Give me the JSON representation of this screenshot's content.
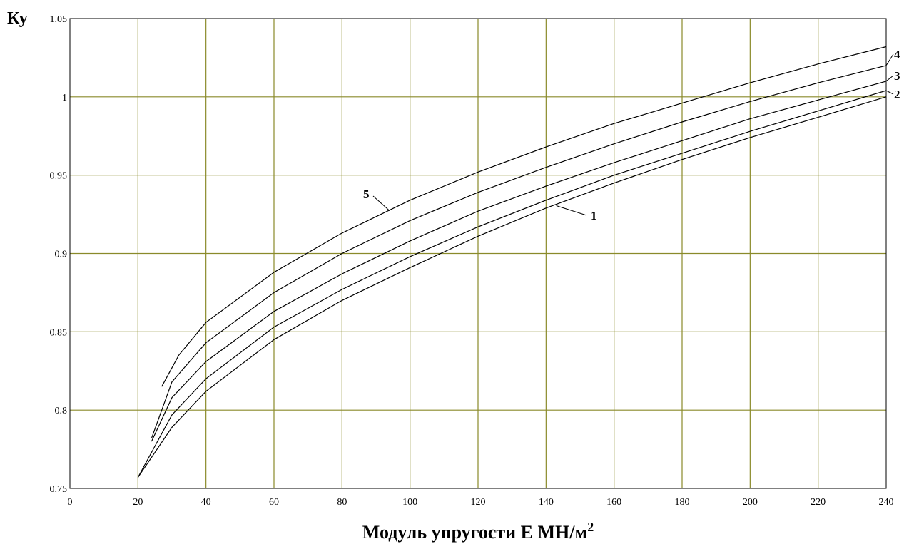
{
  "chart_data": {
    "type": "line",
    "ylabel": "Ку",
    "xlabel": "Модуль упругости Е МН/м",
    "xlabel_sup": "2",
    "xlim": [
      0,
      240
    ],
    "ylim": [
      0.75,
      1.05
    ],
    "x_ticks": [
      "0",
      "20",
      "40",
      "60",
      "80",
      "100",
      "120",
      "140",
      "160",
      "180",
      "200",
      "220",
      "240"
    ],
    "y_ticks": [
      "0.75",
      "0.8",
      "0.85",
      "0.9",
      "0.95",
      "1",
      "1.05"
    ],
    "grid": true,
    "series": [
      {
        "name": "1",
        "x": [
          20,
          30,
          40,
          60,
          80,
          100,
          120,
          140,
          160,
          180,
          200,
          220,
          240
        ],
        "values": [
          0.757,
          0.789,
          0.812,
          0.845,
          0.87,
          0.891,
          0.911,
          0.929,
          0.945,
          0.96,
          0.974,
          0.987,
          1.0
        ]
      },
      {
        "name": "2",
        "x": [
          20,
          30,
          40,
          60,
          80,
          100,
          120,
          140,
          160,
          180,
          200,
          220,
          240
        ],
        "values": [
          0.757,
          0.797,
          0.82,
          0.853,
          0.877,
          0.898,
          0.917,
          0.934,
          0.95,
          0.964,
          0.978,
          0.991,
          1.004
        ]
      },
      {
        "name": "3",
        "x": [
          24,
          30,
          40,
          60,
          80,
          100,
          120,
          140,
          160,
          180,
          200,
          220,
          240
        ],
        "values": [
          0.78,
          0.808,
          0.831,
          0.863,
          0.887,
          0.908,
          0.927,
          0.943,
          0.958,
          0.972,
          0.986,
          0.998,
          1.01
        ]
      },
      {
        "name": "4",
        "x": [
          24,
          30,
          40,
          60,
          80,
          100,
          120,
          140,
          160,
          180,
          200,
          220,
          240
        ],
        "values": [
          0.782,
          0.818,
          0.843,
          0.875,
          0.9,
          0.921,
          0.939,
          0.955,
          0.97,
          0.984,
          0.997,
          1.009,
          1.02
        ]
      },
      {
        "name": "5",
        "x": [
          27,
          32,
          40,
          60,
          80,
          100,
          120,
          140,
          160,
          180,
          200,
          220,
          240
        ],
        "values": [
          0.815,
          0.835,
          0.856,
          0.888,
          0.913,
          0.934,
          0.952,
          0.968,
          0.983,
          0.996,
          1.009,
          1.021,
          1.032
        ]
      }
    ],
    "line_color": "#000000",
    "grid_color": "#8a8a2a"
  }
}
